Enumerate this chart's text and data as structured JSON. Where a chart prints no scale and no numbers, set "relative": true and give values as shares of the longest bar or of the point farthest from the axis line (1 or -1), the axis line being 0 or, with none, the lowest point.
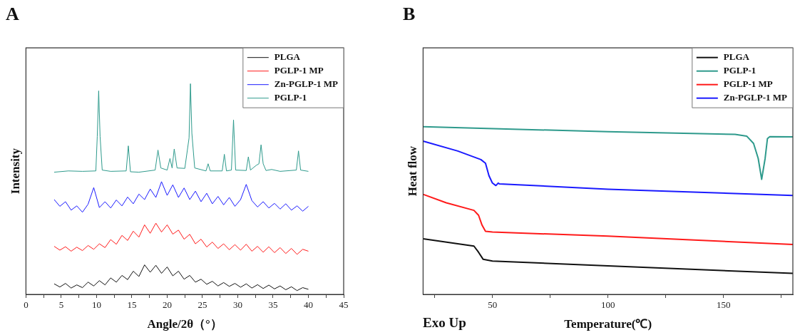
{
  "chart_data": [
    {
      "type": "line",
      "title": "A",
      "xlabel": "Angle/2θ（°）",
      "ylabel": "Intensity",
      "relative": true,
      "legend": "top right",
      "xlim": [
        0,
        45
      ],
      "xticks": [
        0,
        {
          "value": 2.5,
          "label": null
        },
        5,
        {
          "value": 7.5,
          "label": null
        },
        10,
        {
          "value": 12.5,
          "label": null
        },
        15,
        {
          "value": 17.5,
          "label": null
        },
        20,
        {
          "value": 22.5,
          "label": null
        },
        25,
        {
          "value": 27.5,
          "label": null
        },
        30,
        {
          "value": 32.5,
          "label": null
        },
        35,
        {
          "value": 37.5,
          "label": null
        },
        40,
        {
          "value": 42.5,
          "label": null
        },
        45
      ],
      "x": [
        4,
        4.8,
        5.6,
        6.4,
        7.2,
        8,
        8.8,
        9.6,
        10.4,
        11.2,
        12,
        12.8,
        13.6,
        14.4,
        15.2,
        16,
        16.8,
        17.6,
        18.4,
        19.2,
        20,
        20.8,
        21.6,
        22.4,
        23.2,
        24,
        24.8,
        25.6,
        26.4,
        27.2,
        28,
        28.8,
        29.6,
        30.4,
        31.2,
        32,
        32.8,
        33.6,
        34.4,
        35.2,
        36,
        36.8,
        37.6,
        38.4,
        39.2,
        40
      ],
      "series": [
        {
          "name": "PLGA",
          "color": "#111111",
          "values": [
            0.05,
            0.035,
            0.052,
            0.03,
            0.045,
            0.032,
            0.058,
            0.04,
            0.065,
            0.045,
            0.078,
            0.058,
            0.09,
            0.07,
            0.11,
            0.085,
            0.14,
            0.105,
            0.138,
            0.1,
            0.13,
            0.088,
            0.11,
            0.072,
            0.09,
            0.058,
            0.072,
            0.048,
            0.062,
            0.04,
            0.056,
            0.038,
            0.052,
            0.034,
            0.05,
            0.03,
            0.046,
            0.028,
            0.044,
            0.026,
            0.04,
            0.022,
            0.036,
            0.018,
            0.032,
            0.024
          ]
        },
        {
          "name": "PGLP-1 MP",
          "color": "#ff1a1a",
          "values": [
            0.228,
            0.21,
            0.226,
            0.205,
            0.224,
            0.208,
            0.232,
            0.214,
            0.24,
            0.222,
            0.26,
            0.238,
            0.28,
            0.256,
            0.3,
            0.272,
            0.33,
            0.29,
            0.338,
            0.296,
            0.33,
            0.286,
            0.305,
            0.262,
            0.285,
            0.24,
            0.262,
            0.225,
            0.248,
            0.218,
            0.24,
            0.212,
            0.236,
            0.21,
            0.238,
            0.205,
            0.228,
            0.2,
            0.226,
            0.198,
            0.222,
            0.194,
            0.218,
            0.19,
            0.214,
            0.205
          ]
        },
        {
          "name": "Zn-PGLP-1 MP",
          "color": "#1a1aff",
          "values": [
            0.45,
            0.418,
            0.44,
            0.4,
            0.42,
            0.39,
            0.428,
            0.507,
            0.412,
            0.44,
            0.41,
            0.448,
            0.42,
            0.462,
            0.43,
            0.476,
            0.45,
            0.5,
            0.46,
            0.535,
            0.47,
            0.52,
            0.46,
            0.505,
            0.45,
            0.49,
            0.44,
            0.48,
            0.43,
            0.465,
            0.425,
            0.46,
            0.418,
            0.45,
            0.522,
            0.445,
            0.415,
            0.44,
            0.41,
            0.432,
            0.405,
            0.43,
            0.4,
            0.42,
            0.395,
            0.418
          ]
        },
        {
          "name": "PGLP-1",
          "color": "#2e9a8c",
          "x": [
            4,
            6,
            8,
            9.9,
            10.1,
            10.3,
            10.5,
            10.8,
            12,
            14.2,
            14.5,
            14.8,
            16,
            18.3,
            18.7,
            19.1,
            20,
            20.4,
            20.7,
            21,
            21.4,
            22.5,
            23.1,
            23.3,
            23.5,
            23.9,
            25.5,
            25.8,
            26.1,
            27.8,
            28.1,
            28.4,
            29.1,
            29.4,
            29.7,
            31.2,
            31.5,
            31.8,
            32.6,
            33,
            33.3,
            33.6,
            34,
            34.8,
            36,
            38.3,
            38.6,
            38.9,
            40
          ],
          "values": [
            0.58,
            0.586,
            0.584,
            0.586,
            0.75,
            0.966,
            0.75,
            0.59,
            0.584,
            0.586,
            0.705,
            0.582,
            0.58,
            0.59,
            0.685,
            0.6,
            0.59,
            0.645,
            0.6,
            0.69,
            0.6,
            0.598,
            0.742,
            1,
            0.765,
            0.6,
            0.586,
            0.62,
            0.586,
            0.586,
            0.665,
            0.586,
            0.59,
            0.828,
            0.59,
            0.588,
            0.653,
            0.59,
            0.612,
            0.62,
            0.71,
            0.62,
            0.588,
            0.593,
            0.584,
            0.59,
            0.681,
            0.59,
            0.584
          ]
        }
      ]
    },
    {
      "type": "line",
      "title": "B",
      "xlabel": "Temperature(℃)",
      "ylabel": "Heat flow",
      "annotations": [
        "Exo Up"
      ],
      "relative": true,
      "legend": "top right",
      "xlim": [
        20,
        180
      ],
      "xticks": [
        {
          "value": 25,
          "label": null
        },
        50,
        {
          "value": 75,
          "label": null
        },
        100,
        {
          "value": 125,
          "label": null
        },
        150,
        {
          "value": 175,
          "label": null
        }
      ],
      "series": [
        {
          "name": "PLGA",
          "color": "#111111",
          "x": [
            20,
            35,
            42,
            44,
            46,
            50,
            100,
            180
          ],
          "values": [
            0.332,
            0.302,
            0.288,
            0.251,
            0.209,
            0.199,
            0.17,
            0.125
          ]
        },
        {
          "name": "PGLP-1",
          "color": "#2e9a8c",
          "x": [
            20,
            100,
            155,
            160,
            163,
            165,
            166.5,
            168,
            169,
            170,
            180
          ],
          "values": [
            1,
            0.97,
            0.954,
            0.944,
            0.9,
            0.811,
            0.686,
            0.811,
            0.929,
            0.941,
            0.94
          ]
        },
        {
          "name": "PGLP-1 MP",
          "color": "#ff1a1a",
          "x": [
            20,
            30,
            42,
            44,
            45.5,
            47,
            50,
            100,
            180
          ],
          "values": [
            0.597,
            0.546,
            0.501,
            0.472,
            0.413,
            0.376,
            0.372,
            0.347,
            0.298
          ]
        },
        {
          "name": "Zn-PGLP-1 MP",
          "color": "#1a1aff",
          "x": [
            20,
            35,
            45,
            47,
            48.5,
            50,
            51.5,
            52.5,
            53,
            100,
            180
          ],
          "values": [
            0.914,
            0.855,
            0.804,
            0.782,
            0.708,
            0.664,
            0.649,
            0.664,
            0.659,
            0.627,
            0.59
          ]
        }
      ]
    }
  ]
}
